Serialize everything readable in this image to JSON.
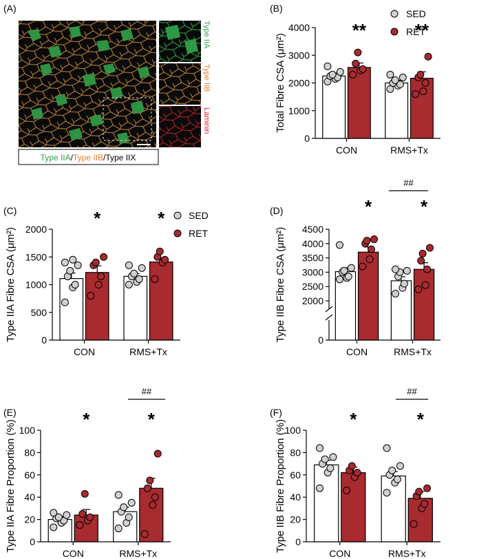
{
  "colors": {
    "sed": "#ffffff",
    "ret": "#a72b2f",
    "sed_point": "#d0d0d0",
    "ret_point": "#a72b2f",
    "green": "#33a04a",
    "orange": "#e07c2c",
    "red": "#d9202a"
  },
  "panel_a": {
    "label": "(A)",
    "side_labels": [
      "Type IIA",
      "Type IIB",
      "Laminin"
    ],
    "caption_parts": [
      "Type IIA",
      "/",
      "Type IIB",
      "/Type IIX"
    ]
  },
  "legend": {
    "sed": "SED",
    "ret": "RET"
  },
  "chart_data": [
    {
      "id": "B",
      "panel_label": "(B)",
      "type": "bar",
      "ylabel": "Total Fibre CSA (μm²)",
      "categories": [
        "CON",
        "RMS+Tx"
      ],
      "ylim": [
        0,
        4000
      ],
      "yticks": [
        "0",
        "1000",
        "2000",
        "3000",
        "4000"
      ],
      "series": [
        {
          "name": "SED",
          "values": [
            2250,
            2000
          ],
          "sem": [
            110,
            100
          ],
          "points": [
            [
              2050,
              2150,
              2200,
              2250,
              2300,
              2400,
              2600
            ],
            [
              1780,
              1900,
              1950,
              2000,
              2100,
              2200,
              2300
            ]
          ]
        },
        {
          "name": "RET",
          "values": [
            2560,
            2170
          ],
          "sem": [
            160,
            230
          ],
          "points": [
            [
              2300,
              2450,
              2500,
              2700,
              3100
            ],
            [
              1600,
              1700,
              2000,
              2200,
              2300,
              2950
            ]
          ]
        }
      ],
      "annotations": [
        "**",
        "**"
      ],
      "bracket": ""
    },
    {
      "id": "C",
      "panel_label": "(C)",
      "type": "bar",
      "ylabel": "Type IIA Fibre CSA (μm²)",
      "categories": [
        "CON",
        "RMS+Tx"
      ],
      "ylim": [
        0,
        2000
      ],
      "yticks": [
        "0",
        "500",
        "1000",
        "1500",
        "2000"
      ],
      "series": [
        {
          "name": "SED",
          "values": [
            1110,
            1150
          ],
          "sem": [
            100,
            50
          ],
          "points": [
            [
              680,
              950,
              1000,
              1150,
              1250,
              1350,
              1400,
              1450
            ],
            [
              1000,
              1050,
              1100,
              1150,
              1200,
              1300,
              1350
            ]
          ]
        },
        {
          "name": "RET",
          "values": [
            1220,
            1410
          ],
          "sem": [
            120,
            70
          ],
          "points": [
            [
              800,
              1000,
              1150,
              1350,
              1400,
              1500
            ],
            [
              1100,
              1400,
              1450,
              1500,
              1600
            ]
          ]
        }
      ],
      "annotations": [
        "*",
        "*"
      ],
      "bracket": ""
    },
    {
      "id": "D",
      "panel_label": "(D)",
      "type": "bar",
      "ylabel": "Type IIB Fibre CSA (μm²)",
      "categories": [
        "CON",
        "RMS+Tx"
      ],
      "ylim": [
        2000,
        4500
      ],
      "axis_break": true,
      "yticks": [
        "0",
        "2000",
        "2500",
        "3000",
        "3500",
        "4000",
        "4500"
      ],
      "series": [
        {
          "name": "SED",
          "values": [
            3020,
            2700
          ],
          "sem": [
            130,
            140
          ],
          "points": [
            [
              2750,
              2800,
              2850,
              3000,
              3050,
              3150,
              3950
            ],
            [
              2250,
              2450,
              2600,
              2850,
              3000,
              3050,
              3100
            ]
          ]
        },
        {
          "name": "RET",
          "values": [
            3700,
            3100
          ],
          "sem": [
            180,
            230
          ],
          "points": [
            [
              3200,
              3450,
              3800,
              4000,
              4100,
              4150
            ],
            [
              2400,
              2550,
              3100,
              3400,
              3650,
              3850
            ]
          ]
        }
      ],
      "annotations": [
        "*",
        "*"
      ],
      "bracket": "##"
    },
    {
      "id": "E",
      "panel_label": "(E)",
      "type": "bar",
      "ylabel": "Type IIA Fibre Proportion (%)",
      "categories": [
        "CON",
        "RMS+Tx"
      ],
      "ylim": [
        0,
        100
      ],
      "yticks": [
        "0",
        "20",
        "40",
        "60",
        "80",
        "100"
      ],
      "series": [
        {
          "name": "SED",
          "values": [
            20,
            27
          ],
          "sem": [
            2.5,
            4
          ],
          "points": [
            [
              13,
              17,
              19,
              21,
              22,
              24,
              26
            ],
            [
              12,
              17,
              22,
              27,
              31,
              35,
              42
            ]
          ]
        },
        {
          "name": "RET",
          "values": [
            24,
            48
          ],
          "sem": [
            5,
            9
          ],
          "points": [
            [
              15,
              19,
              22,
              25,
              43
            ],
            [
              7,
              33,
              40,
              48,
              55,
              79
            ]
          ]
        }
      ],
      "annotations": [
        "*",
        "*"
      ],
      "bracket": "##"
    },
    {
      "id": "F",
      "panel_label": "(F)",
      "type": "bar",
      "ylabel": "Type IIB Fibre Proportion (%)",
      "categories": [
        "CON",
        "RMS+Tx"
      ],
      "ylim": [
        0,
        100
      ],
      "yticks": [
        "0",
        "20",
        "40",
        "60",
        "80",
        "100"
      ],
      "series": [
        {
          "name": "SED",
          "values": [
            69,
            59
          ],
          "sem": [
            4,
            4
          ],
          "points": [
            [
              48,
              62,
              66,
              70,
              74,
              76,
              84
            ],
            [
              44,
              53,
              56,
              60,
              64,
              68,
              84
            ]
          ]
        },
        {
          "name": "RET",
          "values": [
            62,
            39
          ],
          "sem": [
            5,
            6
          ],
          "points": [
            [
              46,
              58,
              62,
              64,
              68
            ],
            [
              16,
              30,
              34,
              41,
              45,
              48
            ]
          ]
        }
      ],
      "annotations": [
        "*",
        "*"
      ],
      "bracket": "##"
    }
  ]
}
